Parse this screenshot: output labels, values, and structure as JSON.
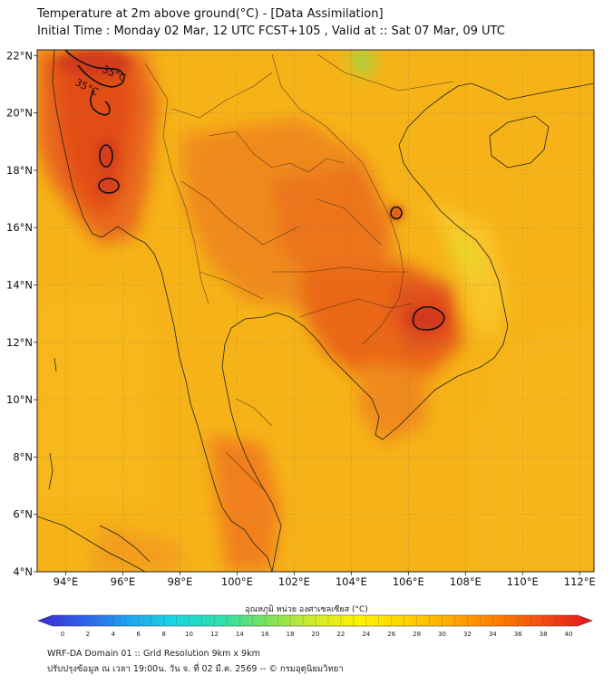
{
  "title": {
    "line1": "Temperature at 2m above ground(°C) - [Data Assimilation]",
    "line2": "Initial Time : Monday 02 Mar, 12 UTC FCST+105 , Valid at :: Sat 07 Mar, 09 UTC"
  },
  "map": {
    "lon_range": [
      93,
      112.5
    ],
    "lat_range": [
      4,
      22.2
    ],
    "lon_ticks": [
      "94°E",
      "96°E",
      "98°E",
      "100°E",
      "102°E",
      "104°E",
      "106°E",
      "108°E",
      "110°E",
      "112°E"
    ],
    "lat_ticks": [
      "4°N",
      "6°N",
      "8°N",
      "10°N",
      "12°N",
      "14°N",
      "16°N",
      "18°N",
      "20°N",
      "22°N"
    ],
    "contour_level_label": "35°C",
    "grid": true,
    "background_color": "#f5b21a"
  },
  "colorbar": {
    "title": "อุณหภูมิ หน่วย องศาเซลเซียส (°C)",
    "ticks": [
      "0",
      "2",
      "4",
      "6",
      "8",
      "10",
      "12",
      "14",
      "16",
      "18",
      "20",
      "22",
      "24",
      "26",
      "28",
      "30",
      "32",
      "34",
      "36",
      "38",
      "40"
    ],
    "range": [
      0,
      40
    ],
    "colors": [
      "#3b2bd6",
      "#2f62e8",
      "#1fa6f0",
      "#19d8e0",
      "#2fe0a8",
      "#7fe25a",
      "#d6ec2a",
      "#fff200",
      "#ffd200",
      "#ffa800",
      "#ff7a00",
      "#f04a10",
      "#e8131e"
    ]
  },
  "footer": {
    "line1": "WRF-DA Domain 01 :: Grid Resolution 9km x 9km",
    "line2": "ปรับปรุงข้อมูล ณ เวลา 19:00น. วัน จ. ที่ 02 มี.ค. 2569 -- © กรมอุตุนิยมวิทยา"
  }
}
